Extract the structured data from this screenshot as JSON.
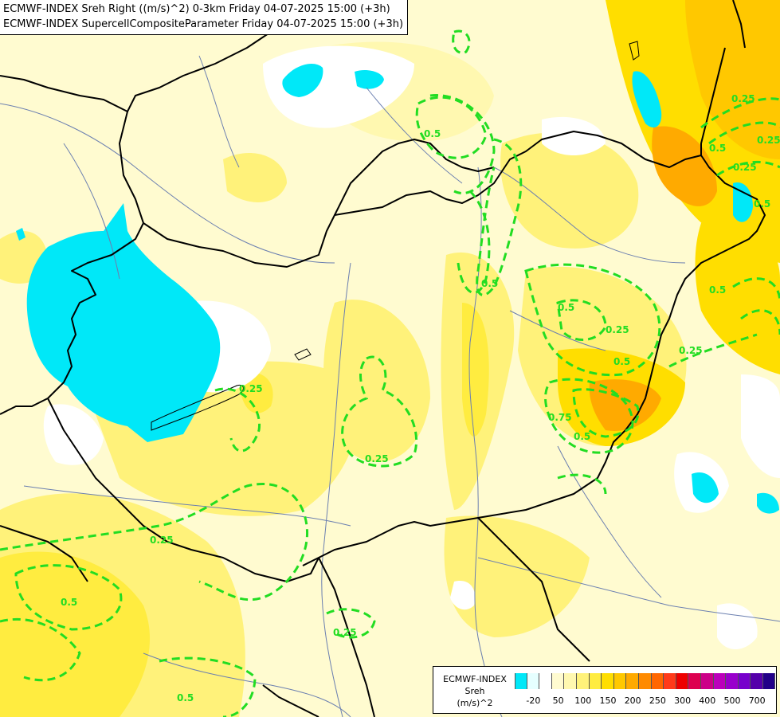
{
  "header": {
    "line1": "ECMWF-INDEX Sreh Right ((m/s)^2) 0-3km Friday 04-07-2025 15:00 (+3h)",
    "line2": "ECMWF-INDEX SupercellCompositeParameter Friday 04-07-2025 15:00 (+3h)"
  },
  "legend": {
    "line1": "ECMWF-INDEX",
    "line2": "Sreh",
    "line3": "(m/s)^2",
    "ticks": [
      "-20",
      "50",
      "100",
      "150",
      "200",
      "250",
      "300",
      "400",
      "500",
      "700"
    ],
    "colors": [
      "#00e8f8",
      "#e6ffff",
      "#ffffff",
      "#fffbd0",
      "#fff8b0",
      "#fff27a",
      "#ffec40",
      "#ffde00",
      "#ffc800",
      "#ffaa00",
      "#ff8a00",
      "#ff6600",
      "#ff3a1a",
      "#ee0000",
      "#dd0050",
      "#cc0088",
      "#bb00bb",
      "#9900cc",
      "#7700cc",
      "#5500aa",
      "#220088"
    ]
  },
  "contour_labels": [
    "0.25",
    "0.5",
    "0.25",
    "0.5",
    "0.25",
    "0.5",
    "0.5",
    "0.5",
    "0.25",
    "0.5",
    "0.75",
    "0.25",
    "0.25",
    "0.25",
    "0.5",
    "0.25",
    "0.5",
    "0.25",
    "0.5",
    "0.5"
  ]
}
